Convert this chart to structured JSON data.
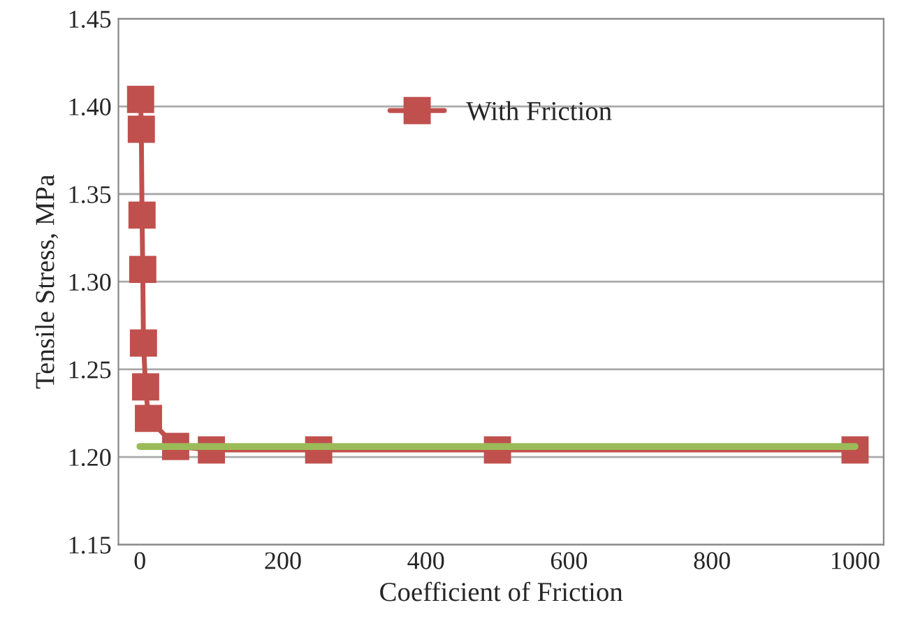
{
  "chart_data": {
    "type": "line",
    "xlabel": "Coefficient of Friction",
    "ylabel": "Tensile Stress, MPa",
    "xlim": [
      -30,
      1040
    ],
    "xticks": [
      0,
      200,
      400,
      600,
      800,
      1000
    ],
    "ylim": [
      1.15,
      1.45
    ],
    "yticks": [
      {
        "value": 1.15,
        "label": "1.15"
      },
      {
        "value": 1.2,
        "label": "1.20"
      },
      {
        "value": 1.25,
        "label": "1.25"
      },
      {
        "value": 1.3,
        "label": "1.30"
      },
      {
        "value": 1.35,
        "label": "1.35"
      },
      {
        "value": 1.4,
        "label": "1.40"
      },
      {
        "value": 1.45,
        "label": "1.45"
      }
    ],
    "grid": "y",
    "legend": "top",
    "marker": "square",
    "line_style": "solid",
    "series": [
      {
        "name": "With Friction",
        "color": "#c0504d",
        "x": [
          1,
          2,
          3,
          4,
          5,
          8,
          12,
          50,
          100,
          250,
          500,
          1000
        ],
        "values": [
          1.404,
          1.387,
          1.338,
          1.307,
          1.265,
          1.24,
          1.222,
          1.206,
          1.204,
          1.204,
          1.204,
          1.204
        ]
      },
      {
        "color": "#9bbb59",
        "marker": "none",
        "x": [
          0,
          1000
        ],
        "values": [
          1.206,
          1.206
        ]
      }
    ]
  }
}
